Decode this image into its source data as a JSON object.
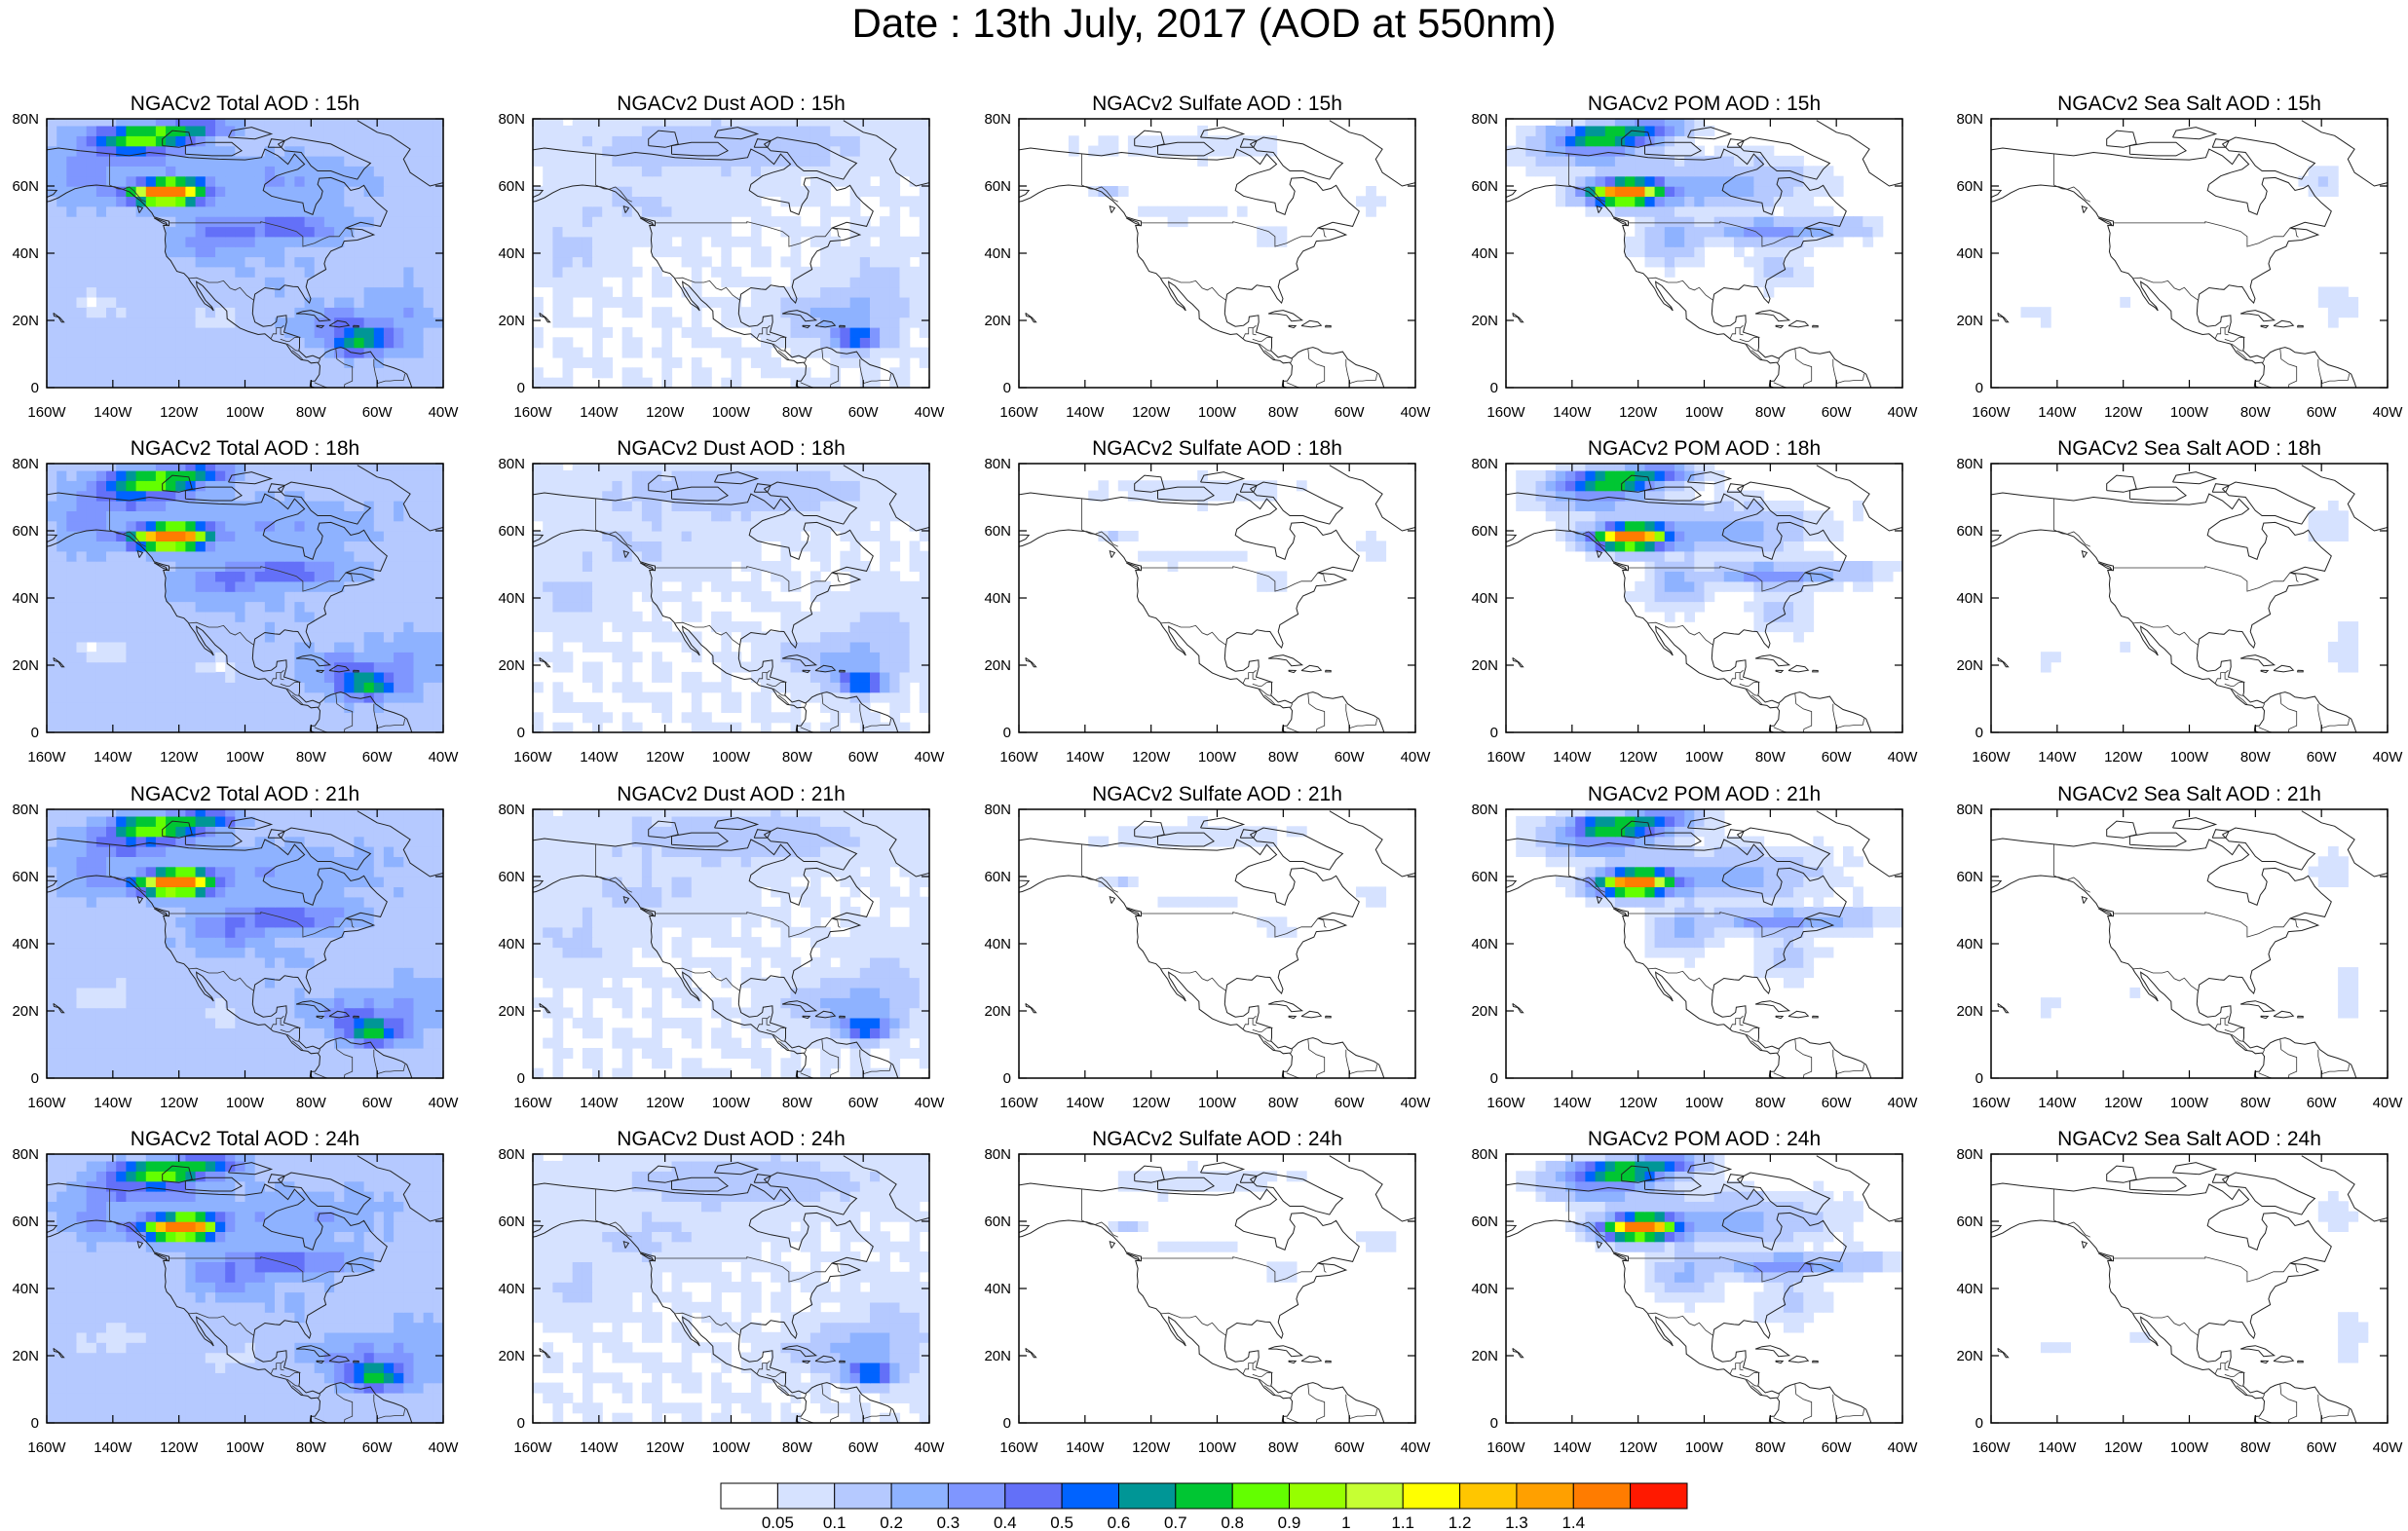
{
  "title": "Date : 13th July, 2017 (AOD at 550nm)",
  "columns": [
    "Total",
    "Dust",
    "Sulfate",
    "POM",
    "Sea Salt"
  ],
  "rows": [
    "15h",
    "18h",
    "21h",
    "24h"
  ],
  "panel_titles": [
    [
      "NGACv2 Total AOD : 15h",
      "NGACv2 Dust AOD : 15h",
      "NGACv2 Sulfate AOD : 15h",
      "NGACv2 POM AOD : 15h",
      "NGACv2 Sea Salt AOD : 15h"
    ],
    [
      "NGACv2 Total AOD : 18h",
      "NGACv2 Dust AOD : 18h",
      "NGACv2 Sulfate AOD : 18h",
      "NGACv2 POM AOD : 18h",
      "NGACv2 Sea Salt AOD : 18h"
    ],
    [
      "NGACv2 Total AOD : 21h",
      "NGACv2 Dust AOD : 21h",
      "NGACv2 Sulfate AOD : 21h",
      "NGACv2 POM AOD : 21h",
      "NGACv2 Sea Salt AOD : 21h"
    ],
    [
      "NGACv2 Total AOD : 24h",
      "NGACv2 Dust AOD : 24h",
      "NGACv2 Sulfate AOD : 24h",
      "NGACv2 POM AOD : 24h",
      "NGACv2 Sea Salt  AOD : 24h"
    ]
  ],
  "map": {
    "lon_range": [
      -160,
      -40
    ],
    "lat_range": [
      0,
      80
    ],
    "lon_ticks": [
      "160W",
      "140W",
      "120W",
      "100W",
      "80W",
      "60W",
      "40W"
    ],
    "lat_ticks": [
      "0",
      "20N",
      "40N",
      "60N",
      "80N"
    ]
  },
  "colorbar": {
    "colors": [
      "#ffffff",
      "#d6e2ff",
      "#b5c9ff",
      "#8eb2ff",
      "#7f96ff",
      "#6370f8",
      "#0063ff",
      "#009696",
      "#00c633",
      "#63ff00",
      "#96ff00",
      "#c6ff33",
      "#ffff00",
      "#ffc600",
      "#ffa000",
      "#ff7c00",
      "#ff1900"
    ],
    "labels": [
      "0.05",
      "0.1",
      "0.2",
      "0.3",
      "0.4",
      "0.5",
      "0.6",
      "0.7",
      "0.8",
      "0.9",
      "1",
      "1.1",
      "1.2",
      "1.3",
      "1.4"
    ]
  }
}
